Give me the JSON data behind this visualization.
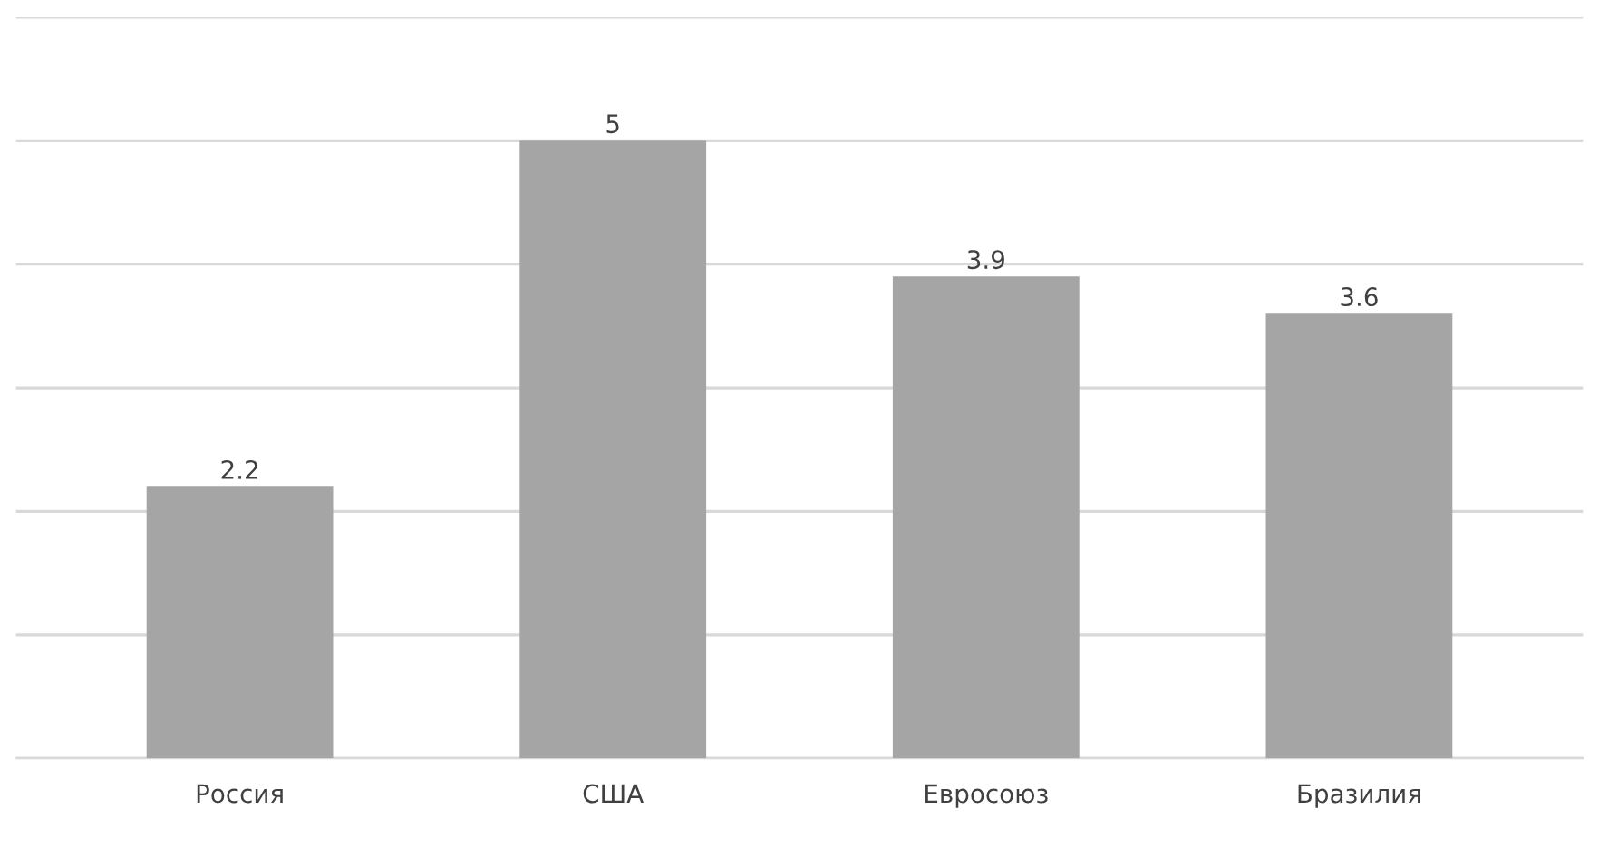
{
  "chart_data": {
    "type": "bar",
    "categories": [
      "Россия",
      "США",
      "Евросоюз",
      "Бразилия"
    ],
    "values": [
      2.2,
      5,
      3.9,
      3.6
    ],
    "color": "#a5a5a5",
    "data_labels": true,
    "ylim": [
      0,
      6
    ],
    "yticks": [
      0,
      1,
      2,
      3,
      4,
      5,
      6
    ],
    "grid": "y",
    "tick_labels": "x",
    "legend": false
  }
}
